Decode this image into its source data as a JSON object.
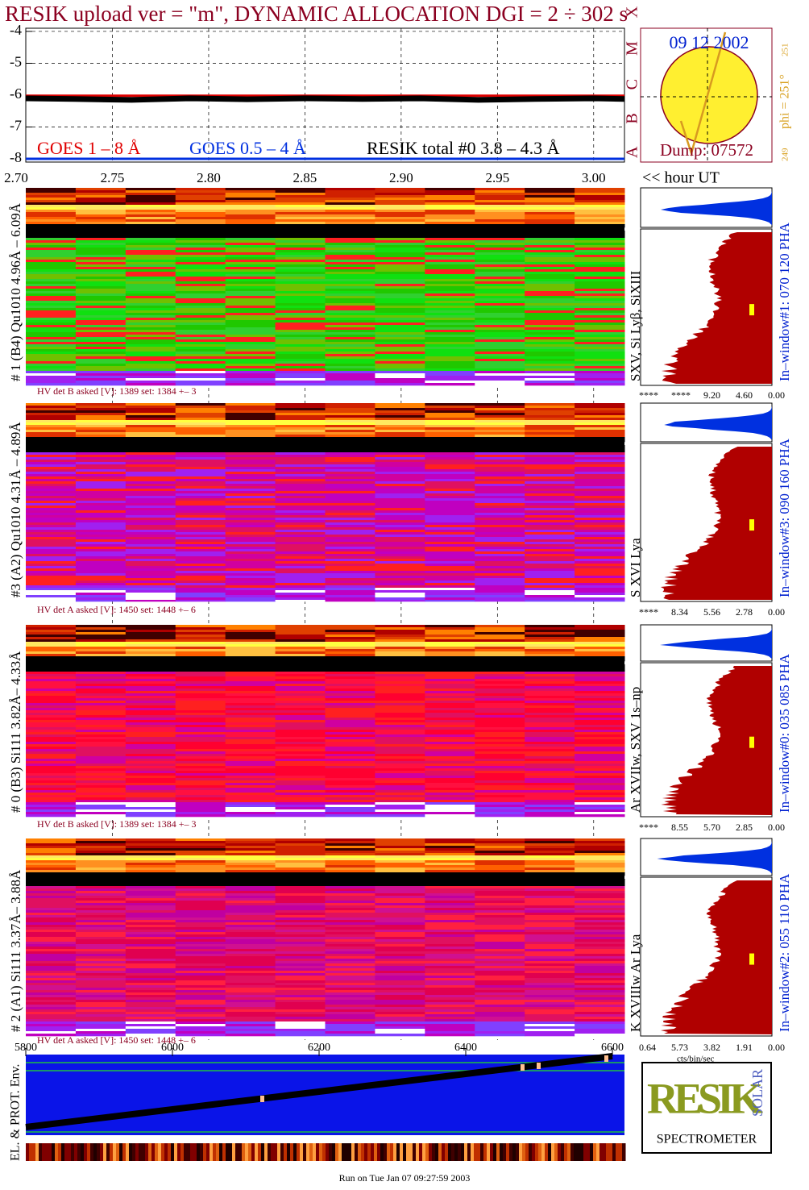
{
  "chart_data": [
    {
      "type": "line",
      "title": "RESIK upload ver = \"m\", DYNAMIC ALLOCATION  DGI =   2 ÷ 302 s",
      "x_label": "<< hour UT",
      "x": [
        2.705,
        2.73,
        2.76,
        2.79,
        2.82,
        2.85,
        2.88,
        2.91,
        2.94,
        2.97,
        3.0,
        3.016
      ],
      "xlim": [
        2.705,
        3.016
      ],
      "xticks": [
        {
          "value": 2.7,
          "label": "2.70"
        },
        2.75,
        {
          "value": 2.8,
          "label": "2.80"
        },
        2.85,
        {
          "value": 2.9,
          "label": "2.90"
        },
        2.95,
        {
          "value": 3.0,
          "label": "3.00"
        }
      ],
      "ylim": [
        -8.1,
        -3.9
      ],
      "yticks": [
        -4,
        -5,
        -6,
        -7,
        -8
      ],
      "grid": true,
      "series": [
        {
          "name": "GOES 1 – 8 Å",
          "color": "#e00000",
          "values": [
            -6.02,
            -6.02,
            -6.02,
            -6.02,
            -6.02,
            -6.02,
            -6.02,
            -6.02,
            -6.02,
            -6.02,
            -6.02,
            -6.02
          ]
        },
        {
          "name": "GOES 0.5 – 4 Å",
          "color": "#0030e0",
          "values": [
            -8.0,
            -8.0,
            -8.0,
            -8.0,
            -8.0,
            -8.0,
            -8.0,
            -8.0,
            -8.0,
            -8.0,
            -8.0,
            -8.0
          ]
        },
        {
          "name": "RESIK total #0  3.8 – 4.3 Å",
          "color": "#000000",
          "values": [
            -6.1,
            -6.12,
            -6.15,
            -6.1,
            -6.13,
            -6.1,
            -6.12,
            -6.1,
            -6.15,
            -6.12,
            -6.1,
            -6.12
          ]
        }
      ]
    },
    {
      "type": "strip",
      "y_label": "EL. & PROT. Env.",
      "xlim": [
        5800,
        6600
      ],
      "xticks": [
        5800,
        6000,
        6200,
        6400,
        6600
      ]
    }
  ],
  "sun": {
    "date": "09 12 2002",
    "dump": "Dump: 07572",
    "phi": "phi = 251°",
    "phi_sub": "251",
    "low": "249",
    "classes": "A B C M X"
  },
  "detectors": [
    {
      "label": "# 1 (B4) Qu1010 4.96Å – 6.09Å",
      "hv": "HV det B asked [V]:  1389 set:  1384  +–    3",
      "lines": "SXV, Si Lyβ, SiXIII",
      "window": "In–window#1:  070 120 PHA",
      "hist_ticks": [
        "****",
        "****",
        "9.20",
        "4.60",
        "0.00"
      ]
    },
    {
      "label": "#3 (A2) Qu1010  4.31Å – 4.89Å",
      "hv": "HV det A asked [V]:  1450 set:  1448  +–    6",
      "lines": "S XVI Lya",
      "window": "In–window#3:  090 160 PHA",
      "hist_ticks": [
        "****",
        "8.34",
        "5.56",
        "2.78",
        "0.00"
      ]
    },
    {
      "label": "# 0 (B3) Si111  3.82Å– 4.33Å",
      "hv": "HV det B asked [V]:  1389 set:  1384  +–    3",
      "lines": "Ar XVIIw,  SXV 1s–np",
      "window": "In–window#0:  035 085 PHA",
      "hist_ticks": [
        "****",
        "8.55",
        "5.70",
        "2.85",
        "0.00"
      ]
    },
    {
      "label": "# 2 (A1) Si111  3.37Å– 3.88Å",
      "hv": "HV det A asked [V]:  1450 set:  1448  +–    6",
      "lines": "K XVIIIw  Ar Lya",
      "window": "In–window#2:  055 110 PHA",
      "hist_ticks": [
        "0.64",
        "5.73",
        "3.82",
        "1.91",
        "0.00"
      ]
    }
  ],
  "hist_unit": "cts/bin/sec",
  "logo": {
    "name": "RESIK",
    "solar": "SOLAR",
    "sub": "SPECTROMETER"
  },
  "footer": "Run on Tue Jan 07 09:27:59 2003"
}
